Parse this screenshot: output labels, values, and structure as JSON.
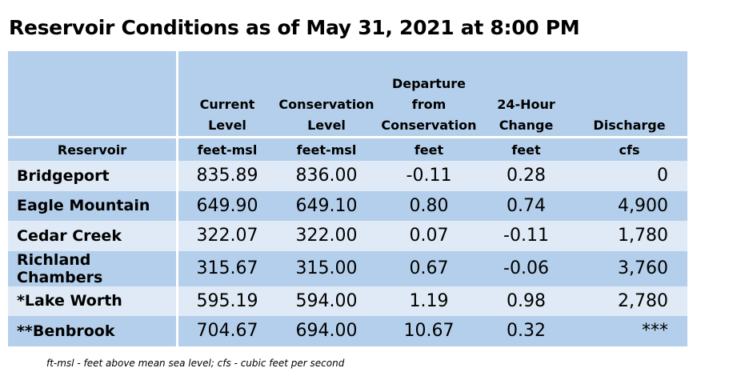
{
  "title": "Reservoir Conditions as of May 31, 2021 at 8:00 PM",
  "table": {
    "headers": [
      "Reservoir",
      "Current Level",
      "Conservation Level",
      "Departure from Conservation",
      "24-Hour Change",
      "Discharge"
    ],
    "header_lines": [
      [
        ""
      ],
      [
        "Current",
        "Level"
      ],
      [
        "Conservation",
        "Level"
      ],
      [
        "Departure",
        "from",
        "Conservation"
      ],
      [
        "24-Hour",
        "Change"
      ],
      [
        "Discharge"
      ]
    ],
    "units": [
      "Reservoir",
      "feet-msl",
      "feet-msl",
      "feet",
      "feet",
      "cfs"
    ],
    "rows": [
      [
        "Bridgeport",
        "835.89",
        "836.00",
        "-0.11",
        "0.28",
        "0"
      ],
      [
        "Eagle Mountain",
        "649.90",
        "649.10",
        "0.80",
        "0.74",
        "4,900"
      ],
      [
        "Cedar Creek",
        "322.07",
        "322.00",
        "0.07",
        "-0.11",
        "1,780"
      ],
      [
        "Richland Chambers",
        "315.67",
        "315.00",
        "0.67",
        "-0.06",
        "3,760"
      ],
      [
        "*Lake Worth",
        "595.19",
        "594.00",
        "1.19",
        "0.98",
        "2,780"
      ],
      [
        "**Benbrook",
        "704.67",
        "694.00",
        "10.67",
        "0.32",
        "***"
      ]
    ]
  },
  "footnote": "ft-msl - feet above mean sea level; cfs - cubic feet per second",
  "colors": {
    "header_bg": "#b4cfeb",
    "row_light": "#dfeaf6",
    "row_dark": "#b4cfeb"
  }
}
